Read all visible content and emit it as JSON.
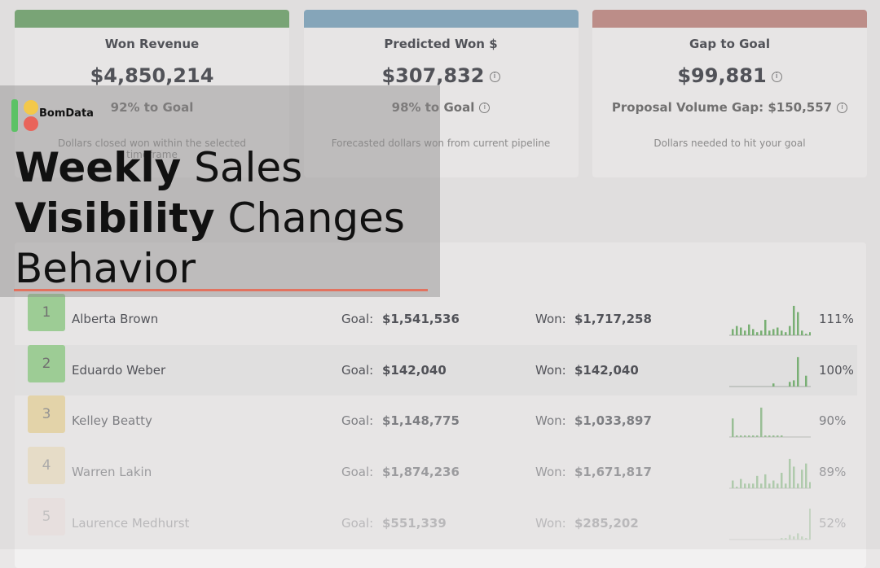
{
  "brand": "BomData",
  "headline": [
    [
      {
        "text": "Weekly",
        "bold": true
      },
      {
        "text": "Sales",
        "bold": false
      }
    ],
    [
      {
        "text": "Visibility",
        "bold": true
      },
      {
        "text": "Changes",
        "bold": false
      }
    ],
    [
      {
        "text": "Behavior",
        "bold": false
      }
    ]
  ],
  "cards": [
    {
      "title": "Won Revenue",
      "value": "$4,850,214",
      "subtitle": "92% to Goal",
      "description": "Dollars closed won within the selected timeframe",
      "color": "#5f9a5c",
      "info": false
    },
    {
      "title": "Predicted Won $",
      "value": "$307,832",
      "subtitle": "98% to Goal",
      "description": "Forecasted dollars won from current pipeline",
      "color": "#6f9bb6",
      "info": true
    },
    {
      "title": "Gap to Goal",
      "value": "$99,881",
      "subtitle": "Proposal Volume Gap: $150,557",
      "description": "Dollars needed to hit your goal",
      "color": "#b97b75",
      "info": true
    }
  ],
  "rows": [
    {
      "rank": 1,
      "name": "Alberta Brown",
      "goal_label": "Goal:",
      "goal": "$1,541,536",
      "won_label": "Won:",
      "won": "$1,717,258",
      "pct": "111%",
      "badge_color": "#8fcf86",
      "spark": [
        20,
        30,
        25,
        15,
        35,
        20,
        10,
        15,
        50,
        15,
        20,
        25,
        15,
        10,
        30,
        95,
        75,
        15,
        5,
        10
      ]
    },
    {
      "rank": 2,
      "name": "Eduardo Weber",
      "goal_label": "Goal:",
      "goal": "$142,040",
      "won_label": "Won:",
      "won": "$142,040",
      "pct": "100%",
      "badge_color": "#8fcf86",
      "spark": [
        0,
        0,
        0,
        0,
        0,
        0,
        0,
        0,
        0,
        0,
        10,
        0,
        0,
        0,
        15,
        20,
        95,
        0,
        35,
        0
      ]
    },
    {
      "rank": 3,
      "name": "Kelley Beatty",
      "goal_label": "Goal:",
      "goal": "$1,148,775",
      "won_label": "Won:",
      "won": "$1,033,897",
      "pct": "90%",
      "badge_color": "#eccf80",
      "spark": [
        60,
        5,
        5,
        5,
        5,
        5,
        5,
        95,
        5,
        5,
        5,
        5,
        5,
        0,
        0,
        0,
        0,
        0,
        0,
        0
      ]
    },
    {
      "rank": 4,
      "name": "Warren Lakin",
      "goal_label": "Goal:",
      "goal": "$1,874,236",
      "won_label": "Won:",
      "won": "$1,671,817",
      "pct": "89%",
      "badge_color": "#f0dba3",
      "spark": [
        25,
        5,
        30,
        15,
        15,
        15,
        40,
        15,
        45,
        15,
        25,
        15,
        50,
        15,
        95,
        70,
        15,
        60,
        80,
        20
      ]
    },
    {
      "rank": 5,
      "name": "Laurence Medhurst",
      "goal_label": "Goal:",
      "goal": "$551,339",
      "won_label": "Won:",
      "won": "$285,202",
      "pct": "52%",
      "badge_color": "#f3d6d3",
      "spark": [
        0,
        0,
        0,
        0,
        0,
        0,
        0,
        0,
        0,
        0,
        0,
        0,
        5,
        5,
        15,
        10,
        20,
        10,
        5,
        100
      ]
    }
  ]
}
